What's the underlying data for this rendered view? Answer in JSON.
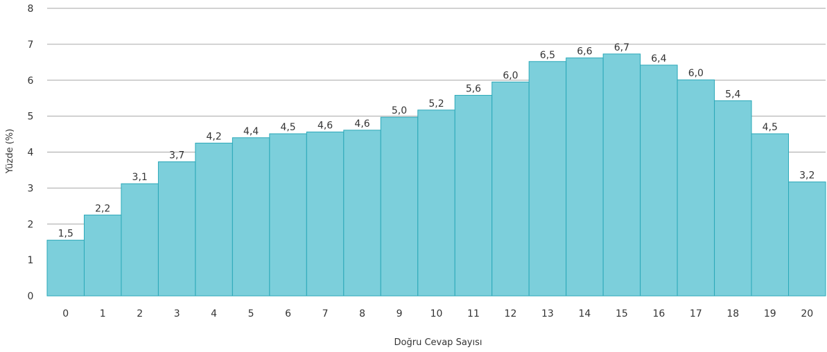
{
  "chart_data": {
    "type": "bar",
    "title": "",
    "xlabel": "Doğru Cevap Sayısı",
    "ylabel": "Yüzde (%)",
    "ylim": [
      0,
      8
    ],
    "yticks": [
      "0",
      "1",
      "2",
      "3",
      "4",
      "5",
      "6",
      "7",
      "8"
    ],
    "grid": true,
    "categories": [
      "0",
      "1",
      "2",
      "3",
      "4",
      "5",
      "6",
      "7",
      "8",
      "9",
      "10",
      "11",
      "12",
      "13",
      "14",
      "15",
      "16",
      "17",
      "18",
      "19",
      "20"
    ],
    "values": [
      1.55,
      2.25,
      3.12,
      3.73,
      4.25,
      4.4,
      4.51,
      4.56,
      4.61,
      4.97,
      5.17,
      5.58,
      5.95,
      6.52,
      6.62,
      6.73,
      6.42,
      6.01,
      5.43,
      4.51,
      3.17
    ],
    "data_labels": [
      "1,5",
      "2,2",
      "3,1",
      "3,7",
      "4,2",
      "4,4",
      "4,5",
      "4,6",
      "4,6",
      "5,0",
      "5,2",
      "5,6",
      "6,0",
      "6,5",
      "6,6",
      "6,7",
      "6,4",
      "6,0",
      "5,4",
      "4,5",
      "3,2"
    ],
    "colors": {
      "bar_fill": "#7ccfdb",
      "bar_stroke": "#2aa8b8",
      "grid": "#a6a6a6",
      "text": "#333333"
    }
  }
}
